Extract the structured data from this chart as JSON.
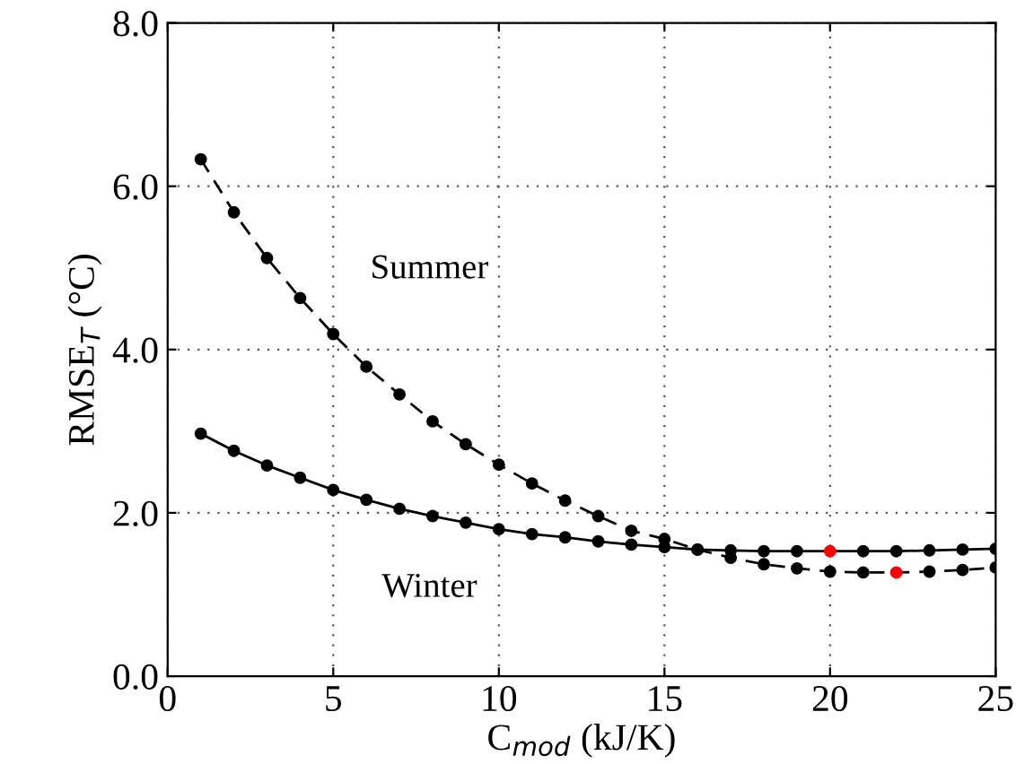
{
  "chart_data": {
    "type": "line",
    "xlabel": "C$_{mod}$ (kJ/K)",
    "ylabel": "RMSE$_{T}$ (°C)",
    "x": [
      1,
      2,
      3,
      4,
      5,
      6,
      7,
      8,
      9,
      10,
      11,
      12,
      13,
      14,
      15,
      16,
      17,
      18,
      19,
      20,
      21,
      22,
      23,
      24,
      25
    ],
    "series": [
      {
        "name": "Summer",
        "color": "#000000",
        "line_style": "dashed",
        "values": [
          6.33,
          5.68,
          5.12,
          4.63,
          4.19,
          3.79,
          3.45,
          3.12,
          2.84,
          2.59,
          2.36,
          2.15,
          1.96,
          1.78,
          1.68,
          1.55,
          1.45,
          1.37,
          1.32,
          1.28,
          1.27,
          1.27,
          1.28,
          1.3,
          1.33
        ],
        "colors": [
          "#000000",
          "#000000",
          "#000000",
          "#000000",
          "#000000",
          "#000000",
          "#000000",
          "#000000",
          "#000000",
          "#000000",
          "#000000",
          "#000000",
          "#000000",
          "#000000",
          "#000000",
          "#000000",
          "#000000",
          "#000000",
          "#000000",
          "#000000",
          "#000000",
          "#ff0000",
          "#000000",
          "#000000",
          "#000000"
        ]
      },
      {
        "name": "Winter",
        "color": "#000000",
        "line_style": "solid",
        "values": [
          2.97,
          2.76,
          2.58,
          2.43,
          2.28,
          2.16,
          2.05,
          1.96,
          1.88,
          1.8,
          1.74,
          1.7,
          1.65,
          1.61,
          1.58,
          1.55,
          1.54,
          1.53,
          1.53,
          1.53,
          1.53,
          1.53,
          1.54,
          1.55,
          1.56
        ],
        "colors": [
          "#000000",
          "#000000",
          "#000000",
          "#000000",
          "#000000",
          "#000000",
          "#000000",
          "#000000",
          "#000000",
          "#000000",
          "#000000",
          "#000000",
          "#000000",
          "#000000",
          "#000000",
          "#000000",
          "#000000",
          "#000000",
          "#000000",
          "#ff0000",
          "#000000",
          "#000000",
          "#000000",
          "#000000",
          "#000000"
        ]
      }
    ],
    "marker": "circle",
    "grid": true,
    "xlim": [
      0,
      25
    ],
    "xticks": [
      0,
      5,
      10,
      15,
      20,
      25
    ],
    "ylim": [
      0,
      8
    ],
    "yticks": [
      {
        "value": 0,
        "label": "0.0"
      },
      {
        "value": 2,
        "label": "2.0"
      },
      {
        "value": 4,
        "label": "4.0"
      },
      {
        "value": 6,
        "label": "6.0"
      },
      {
        "value": 8,
        "label": "8.0"
      }
    ]
  }
}
